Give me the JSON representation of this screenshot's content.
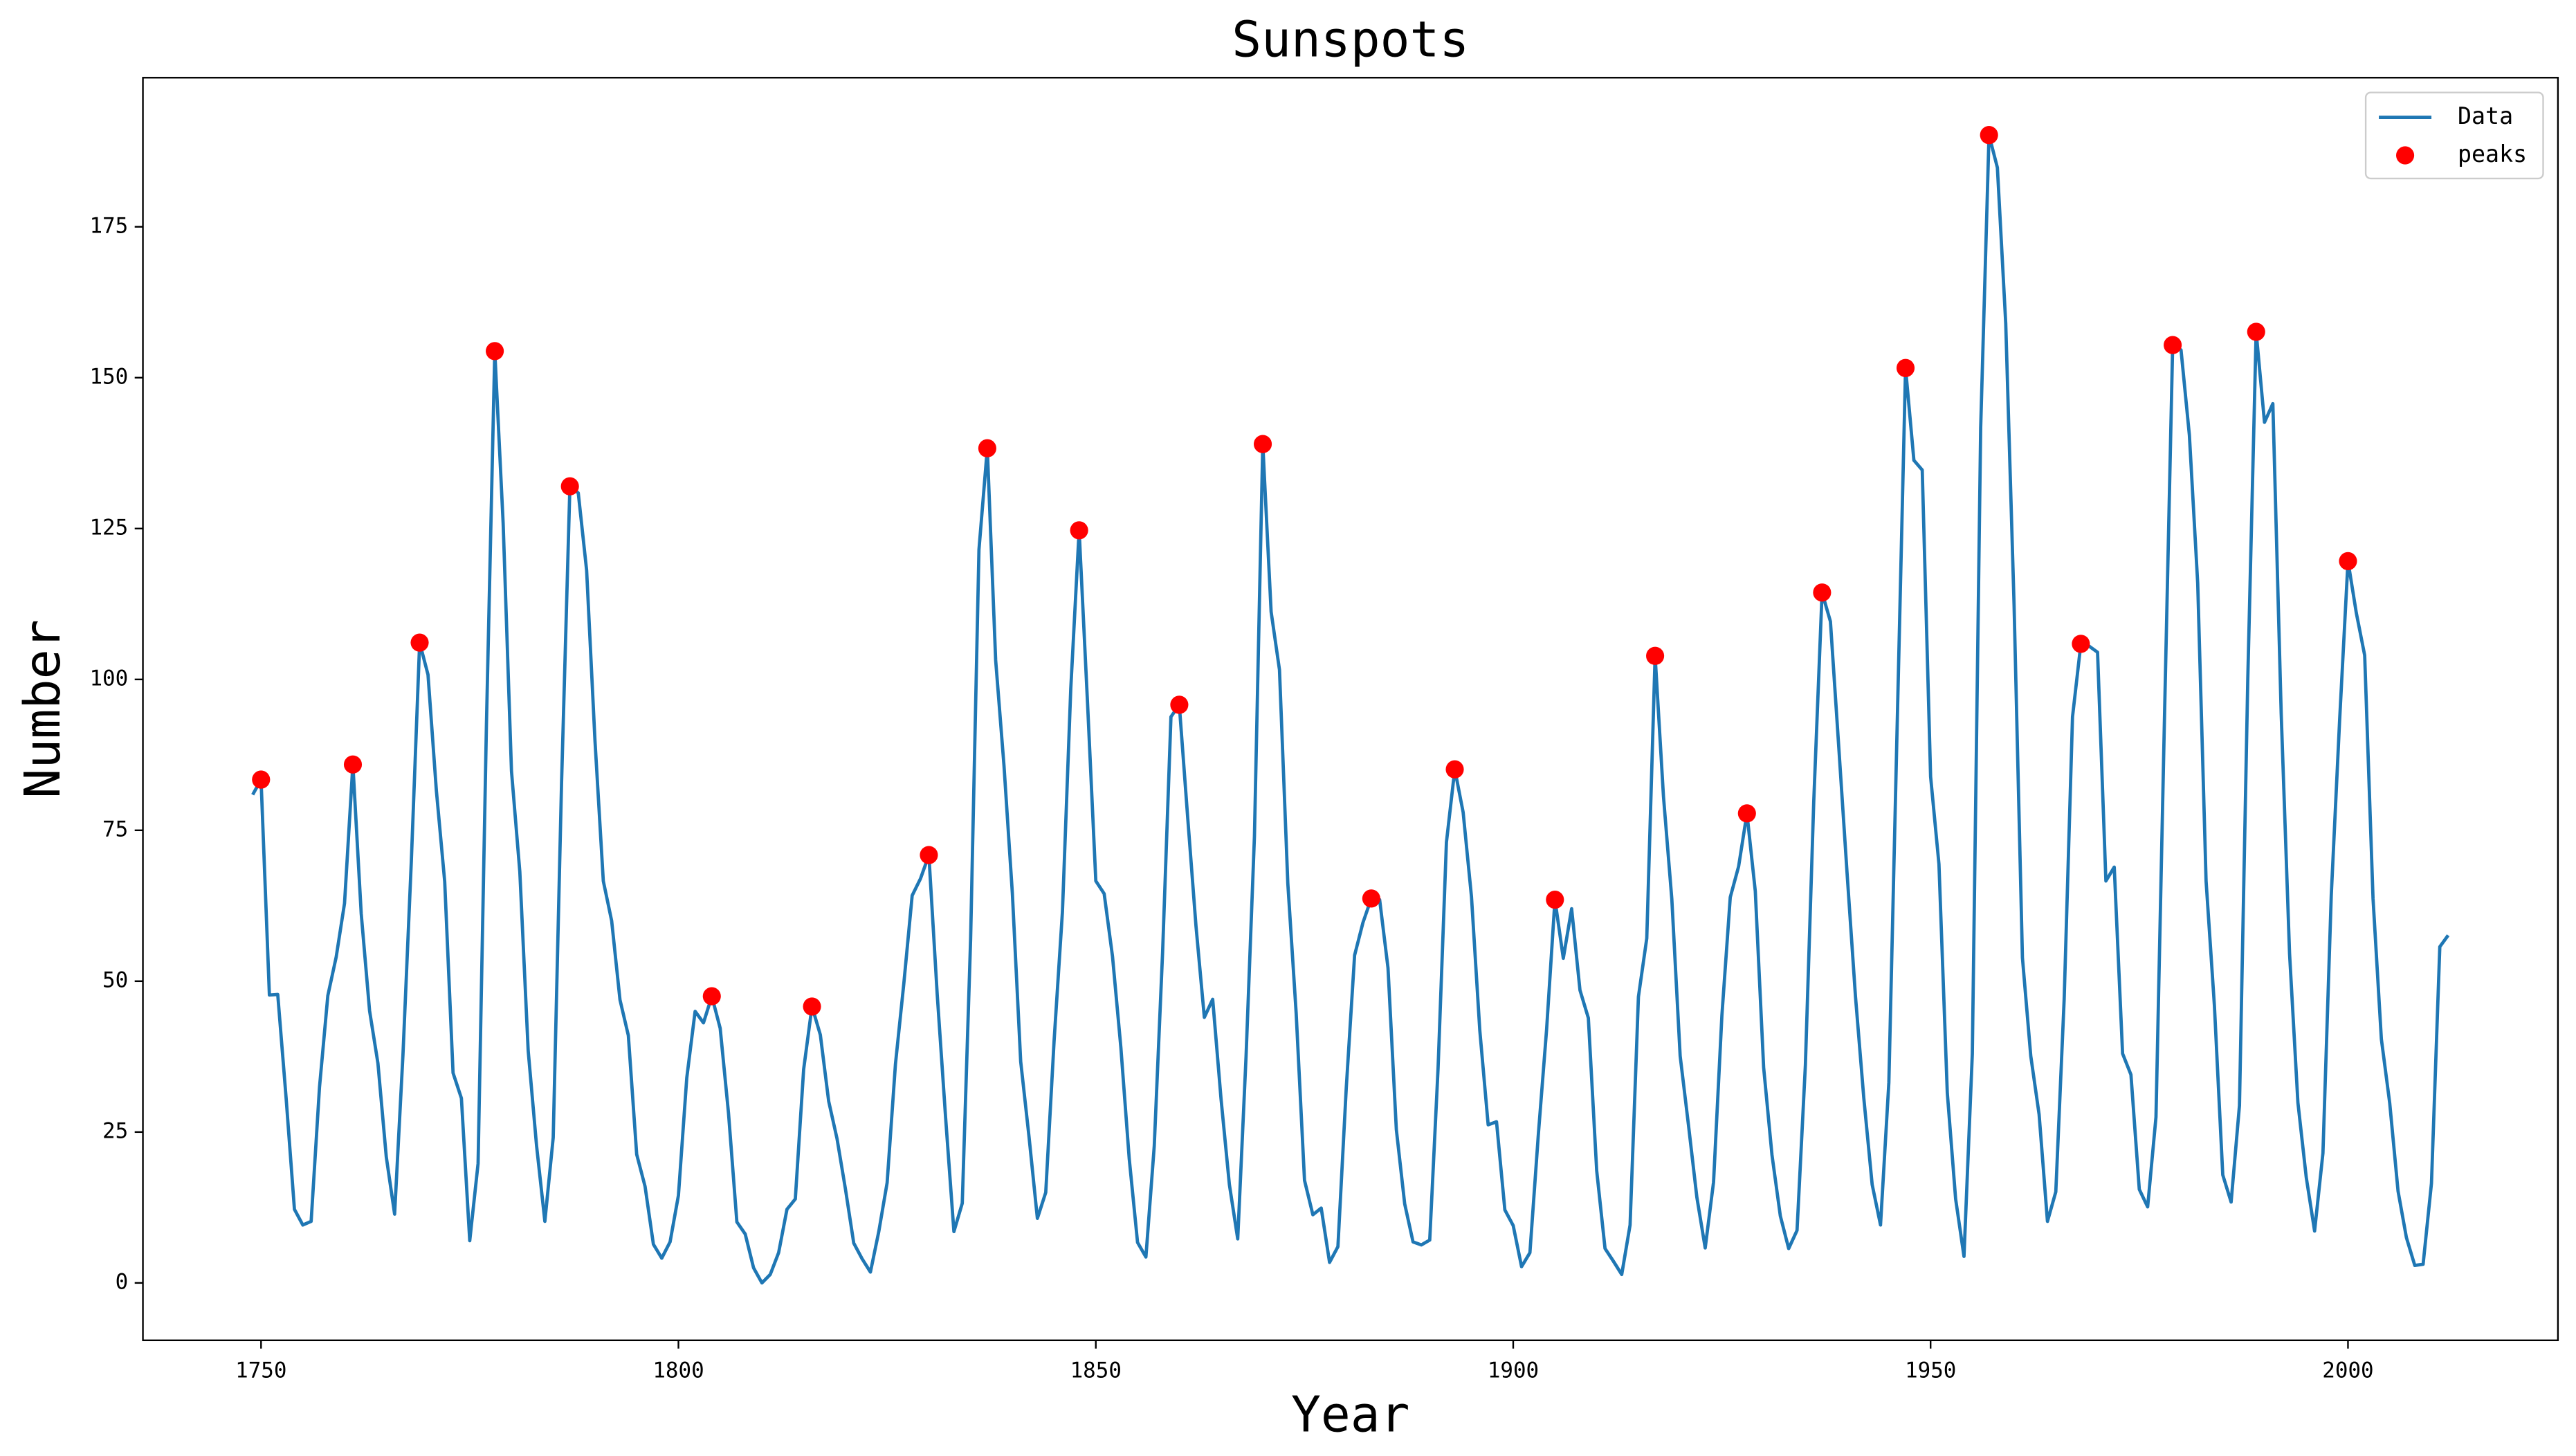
{
  "chart_data": {
    "type": "line",
    "title": "Sunspots",
    "xlabel": "Year",
    "ylabel": "Number",
    "xlim": [
      1735.85,
      2025.15
    ],
    "ylim": [
      -9.51,
      199.71
    ],
    "xticks": [
      1750,
      1800,
      1850,
      1900,
      1950,
      2000
    ],
    "yticks": [
      0,
      25,
      50,
      75,
      100,
      125,
      150,
      175
    ],
    "legend": "upper right",
    "series": [
      {
        "name": "Data",
        "color": "#1f77b4",
        "mode": "line",
        "x": [
          1749,
          1750,
          1751,
          1752,
          1753,
          1754,
          1755,
          1756,
          1757,
          1758,
          1759,
          1760,
          1761,
          1762,
          1763,
          1764,
          1765,
          1766,
          1767,
          1768,
          1769,
          1770,
          1771,
          1772,
          1773,
          1774,
          1775,
          1776,
          1777,
          1778,
          1779,
          1780,
          1781,
          1782,
          1783,
          1784,
          1785,
          1786,
          1787,
          1788,
          1789,
          1790,
          1791,
          1792,
          1793,
          1794,
          1795,
          1796,
          1797,
          1798,
          1799,
          1800,
          1801,
          1802,
          1803,
          1804,
          1805,
          1806,
          1807,
          1808,
          1809,
          1810,
          1811,
          1812,
          1813,
          1814,
          1815,
          1816,
          1817,
          1818,
          1819,
          1820,
          1821,
          1822,
          1823,
          1824,
          1825,
          1826,
          1827,
          1828,
          1829,
          1830,
          1831,
          1832,
          1833,
          1834,
          1835,
          1836,
          1837,
          1838,
          1839,
          1840,
          1841,
          1842,
          1843,
          1844,
          1845,
          1846,
          1847,
          1848,
          1849,
          1850,
          1851,
          1852,
          1853,
          1854,
          1855,
          1856,
          1857,
          1858,
          1859,
          1860,
          1861,
          1862,
          1863,
          1864,
          1865,
          1866,
          1867,
          1868,
          1869,
          1870,
          1871,
          1872,
          1873,
          1874,
          1875,
          1876,
          1877,
          1878,
          1879,
          1880,
          1881,
          1882,
          1883,
          1884,
          1885,
          1886,
          1887,
          1888,
          1889,
          1890,
          1891,
          1892,
          1893,
          1894,
          1895,
          1896,
          1897,
          1898,
          1899,
          1900,
          1901,
          1902,
          1903,
          1904,
          1905,
          1906,
          1907,
          1908,
          1909,
          1910,
          1911,
          1912,
          1913,
          1914,
          1915,
          1916,
          1917,
          1918,
          1919,
          1920,
          1921,
          1922,
          1923,
          1924,
          1925,
          1926,
          1927,
          1928,
          1929,
          1930,
          1931,
          1932,
          1933,
          1934,
          1935,
          1936,
          1937,
          1938,
          1939,
          1940,
          1941,
          1942,
          1943,
          1944,
          1945,
          1946,
          1947,
          1948,
          1949,
          1950,
          1951,
          1952,
          1953,
          1954,
          1955,
          1956,
          1957,
          1958,
          1959,
          1960,
          1961,
          1962,
          1963,
          1964,
          1965,
          1966,
          1967,
          1968,
          1969,
          1970,
          1971,
          1972,
          1973,
          1974,
          1975,
          1976,
          1977,
          1978,
          1979,
          1980,
          1981,
          1982,
          1983,
          1984,
          1985,
          1986,
          1987,
          1988,
          1989,
          1990,
          1991,
          1992,
          1993,
          1994,
          1995,
          1996,
          1997,
          1998,
          1999,
          2000,
          2001,
          2002,
          2003,
          2004,
          2005,
          2006,
          2007,
          2008,
          2009,
          2010,
          2011,
          2012
        ],
        "values": [
          80.9,
          83.4,
          47.7,
          47.8,
          30.7,
          12.2,
          9.6,
          10.2,
          32.4,
          47.6,
          54.0,
          62.9,
          85.9,
          61.2,
          45.1,
          36.4,
          20.9,
          11.4,
          37.8,
          69.8,
          106.1,
          100.8,
          81.6,
          66.5,
          34.8,
          30.6,
          7.0,
          19.8,
          92.5,
          154.4,
          125.9,
          84.8,
          68.1,
          38.5,
          22.8,
          10.2,
          24.1,
          82.9,
          132.0,
          130.9,
          118.1,
          89.9,
          66.6,
          60.0,
          46.9,
          41.0,
          21.3,
          16.0,
          6.4,
          4.1,
          6.8,
          14.5,
          34.0,
          45.0,
          43.1,
          47.5,
          42.2,
          28.1,
          10.1,
          8.1,
          2.5,
          0.0,
          1.4,
          5.0,
          12.2,
          13.9,
          35.4,
          45.8,
          41.1,
          30.1,
          23.9,
          15.6,
          6.6,
          4.0,
          1.8,
          8.5,
          16.6,
          36.3,
          49.6,
          64.2,
          67.0,
          70.9,
          47.8,
          27.5,
          8.5,
          13.2,
          56.9,
          121.5,
          138.3,
          103.2,
          85.7,
          64.6,
          36.7,
          24.2,
          10.7,
          15.0,
          40.1,
          61.5,
          98.5,
          124.7,
          96.3,
          66.6,
          64.5,
          54.1,
          39.0,
          20.6,
          6.7,
          4.3,
          22.7,
          54.8,
          93.8,
          95.8,
          77.2,
          59.1,
          44.0,
          47.0,
          30.5,
          16.3,
          7.3,
          37.6,
          74.0,
          139.0,
          111.2,
          101.6,
          66.2,
          44.7,
          17.0,
          11.3,
          12.4,
          3.4,
          6.0,
          32.3,
          54.3,
          59.7,
          63.7,
          63.5,
          52.2,
          25.4,
          13.1,
          6.8,
          6.3,
          7.1,
          35.6,
          73.0,
          85.1,
          78.0,
          64.0,
          41.8,
          26.2,
          26.7,
          12.1,
          9.5,
          2.7,
          5.0,
          24.4,
          42.0,
          63.5,
          53.8,
          62.0,
          48.5,
          43.9,
          18.6,
          5.7,
          3.6,
          1.4,
          9.6,
          47.4,
          57.1,
          103.9,
          80.6,
          63.6,
          37.6,
          26.1,
          14.2,
          5.8,
          16.7,
          44.3,
          63.9,
          69.0,
          77.8,
          64.9,
          35.7,
          21.2,
          11.1,
          5.7,
          8.7,
          36.1,
          79.7,
          114.4,
          109.6,
          88.8,
          67.8,
          47.5,
          30.6,
          16.3,
          9.6,
          33.2,
          92.6,
          151.6,
          136.3,
          134.7,
          83.9,
          69.4,
          31.5,
          13.9,
          4.4,
          38.0,
          141.7,
          190.2,
          184.8,
          159.0,
          112.3,
          53.9,
          37.6,
          27.9,
          10.2,
          15.1,
          47.0,
          93.8,
          105.9,
          105.5,
          104.5,
          66.6,
          68.9,
          38.0,
          34.5,
          15.5,
          12.6,
          27.5,
          92.5,
          155.4,
          154.6,
          140.5,
          115.9,
          66.6,
          45.9,
          17.9,
          13.4,
          29.4,
          100.2,
          157.6,
          142.6,
          145.7,
          94.3,
          54.6,
          29.9,
          17.5,
          8.6,
          21.5,
          64.3,
          93.3,
          119.6,
          111.0,
          104.0,
          63.7,
          40.4,
          29.8,
          15.2,
          7.5,
          2.9,
          3.1,
          16.5,
          55.7,
          57.6
        ]
      },
      {
        "name": "peaks",
        "color": "#ff0000",
        "mode": "markers",
        "x": [
          1750,
          1761,
          1769,
          1778,
          1787,
          1804,
          1816,
          1830,
          1837,
          1848,
          1860,
          1870,
          1883,
          1893,
          1905,
          1917,
          1928,
          1937,
          1947,
          1957,
          1968,
          1979,
          1989,
          2000
        ],
        "values": [
          83.4,
          85.9,
          106.1,
          154.4,
          132.0,
          47.5,
          45.8,
          70.9,
          138.3,
          124.7,
          95.8,
          139.0,
          63.7,
          85.1,
          63.5,
          103.9,
          77.8,
          114.4,
          151.6,
          190.2,
          105.9,
          155.4,
          157.6,
          119.6
        ]
      }
    ]
  }
}
